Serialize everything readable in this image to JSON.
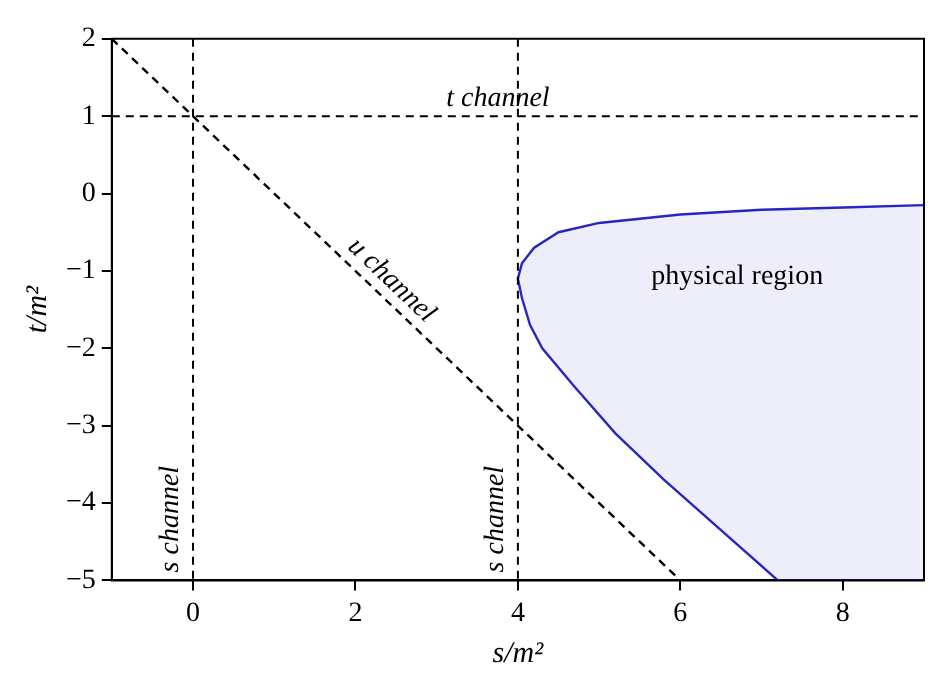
{
  "chart_data": {
    "type": "line",
    "xlabel": "s/m²",
    "ylabel": "t/m²",
    "xlim": [
      -1,
      9
    ],
    "ylim": [
      -5,
      2
    ],
    "xticks": [
      0,
      2,
      4,
      6,
      8
    ],
    "yticks": [
      -5,
      -4,
      -3,
      -2,
      -1,
      0,
      1,
      2
    ],
    "grid": false,
    "legend": false,
    "marker": "none",
    "series": [
      {
        "type": "area",
        "color": "#2626c0",
        "x": [
          9,
          8,
          7,
          6,
          5,
          4.5,
          4.2,
          4.05,
          4,
          4.05,
          4.15,
          4.3,
          4.7,
          5.2,
          5.8,
          6.5,
          7.2,
          9
        ],
        "values": [
          -0.15,
          -0.18,
          -0.21,
          -0.27,
          -0.38,
          -0.5,
          -0.7,
          -0.9,
          -1.1,
          -1.35,
          -1.7,
          -2.0,
          -2.5,
          -3.1,
          -3.7,
          -4.35,
          -5,
          -5
        ]
      },
      {
        "type": "line",
        "name": "u channel",
        "color": "#000000",
        "line_style": "dashed",
        "x": [
          -1,
          6
        ],
        "values": [
          2,
          -5
        ]
      }
    ],
    "ref_lines": [
      {
        "axis": "x",
        "value": 0,
        "label": "s channel",
        "color": "#000000",
        "line_style": "dashed"
      },
      {
        "axis": "x",
        "value": 4,
        "label": "s channel",
        "color": "#000000",
        "line_style": "dashed"
      },
      {
        "axis": "y",
        "value": 1,
        "label": "t channel",
        "color": "#000000",
        "line_style": "dashed"
      }
    ],
    "annotations": [
      "physical region"
    ]
  }
}
